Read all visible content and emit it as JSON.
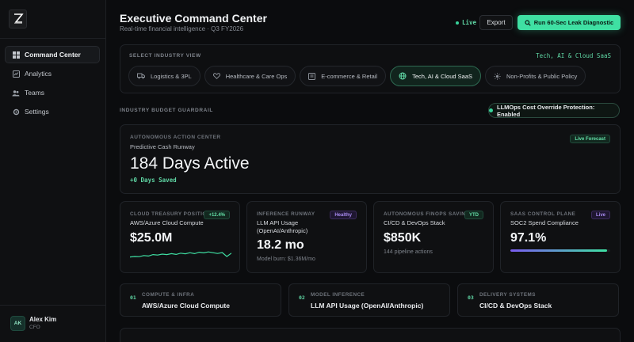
{
  "header": {
    "title": "Executive Command Center",
    "subtitle": "Real-time financial intelligence · Q3 FY2026",
    "live_label": "Live",
    "export_label": "Export",
    "diagnostic_label": "Run 60-Sec Leak Diagnostic"
  },
  "sidebar": {
    "items": [
      {
        "label": "Command Center",
        "icon": "grid-icon",
        "active": true
      },
      {
        "label": "Analytics",
        "icon": "chart-icon",
        "active": false
      },
      {
        "label": "Teams",
        "icon": "users-icon",
        "active": false
      },
      {
        "label": "Settings",
        "icon": "gear-icon",
        "active": false
      }
    ],
    "user": {
      "initials": "AK",
      "name": "Alex Kim",
      "role": "CFO"
    }
  },
  "industry": {
    "label": "SELECT INDUSTRY VIEW",
    "current": "Tech, AI & Cloud SaaS",
    "tabs": [
      {
        "label": "Logistics & 3PL",
        "icon": "truck-icon"
      },
      {
        "label": "Healthcare & Care Ops",
        "icon": "heart-icon"
      },
      {
        "label": "E-commerce & Retail",
        "icon": "store-icon"
      },
      {
        "label": "Tech, AI & Cloud SaaS",
        "icon": "globe-icon",
        "active": true
      },
      {
        "label": "Non-Profits & Public Policy",
        "icon": "sun-icon"
      }
    ]
  },
  "guardrail": {
    "label": "INDUSTRY BUDGET GUARDRAIL",
    "badge": "LLMOps Cost Override Protection: Enabled"
  },
  "action_center": {
    "label": "AUTONOMOUS ACTION CENTER",
    "subtitle": "Predictive Cash Runway",
    "value": "184 Days Active",
    "saved": "+0 Days Saved",
    "badge": "Live Forecast"
  },
  "metrics": [
    {
      "label": "CLOUD TREASURY POSITION",
      "name": "AWS/Azure Cloud Compute",
      "value": "$25.0M",
      "badge": "+12.4%",
      "sparkline": [
        0.55,
        0.5,
        0.52,
        0.4,
        0.45,
        0.3,
        0.35,
        0.25,
        0.3,
        0.2,
        0.28,
        0.15,
        0.22,
        0.1,
        0.2,
        0.05,
        0.12,
        0.02,
        0.1,
        0.18,
        0.08,
        0.5,
        0.15
      ]
    },
    {
      "label": "INFERENCE RUNWAY",
      "name": "LLM API Usage (OpenAI/Anthropic)",
      "value": "18.2 mo",
      "note": "Model burn: $1.36M/mo",
      "badge": "Healthy"
    },
    {
      "label": "AUTONOMOUS FINOPS SAVINGS",
      "name": "CI/CD & DevOps Stack",
      "value": "$850K",
      "note": "144 pipeline actions",
      "badge": "YTD"
    },
    {
      "label": "SAAS CONTROL PLANE",
      "name": "SOC2 Spend Compliance",
      "value": "97.1%",
      "badge": "Live",
      "progress": 0.971
    }
  ],
  "pipeline": [
    {
      "num": "01",
      "label": "COMPUTE & INFRA",
      "name": "AWS/Azure Cloud Compute"
    },
    {
      "num": "02",
      "label": "MODEL INFERENCE",
      "name": "LLM API Usage (OpenAI/Anthropic)"
    },
    {
      "num": "03",
      "label": "DELIVERY SYSTEMS",
      "name": "CI/CD & DevOps Stack"
    }
  ]
}
